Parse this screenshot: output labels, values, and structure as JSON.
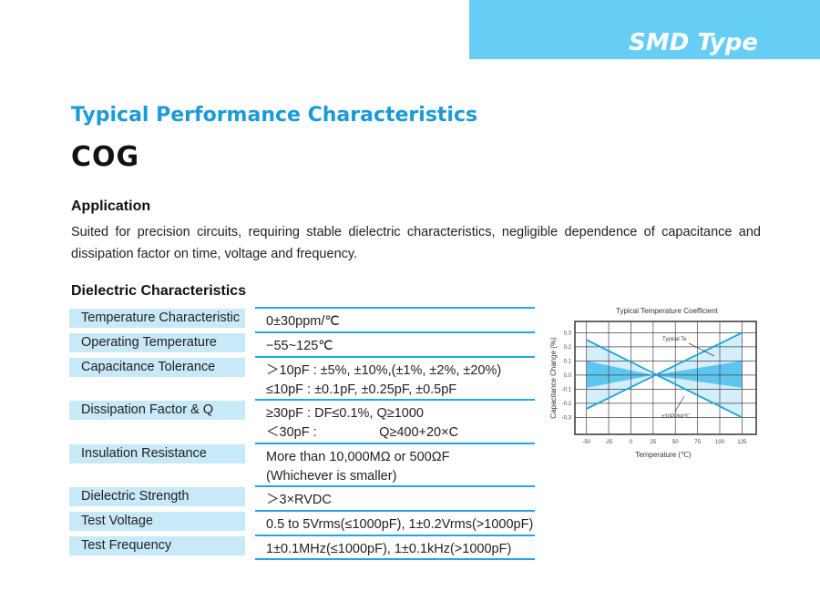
{
  "header": {
    "badge": "SMD Type"
  },
  "title": "Typical Performance Characteristics",
  "subtitle": "COG",
  "application": {
    "heading": "Application",
    "text": "Suited for precision circuits, requiring stable dielectric characteristics, negligible dependence of capacitance and dissipation factor on time, voltage and frequency."
  },
  "dielectric": {
    "heading": "Dielectric Characteristics",
    "rows": [
      {
        "label": "Temperature Characteristic",
        "lines": [
          "0±30ppm/℃"
        ]
      },
      {
        "label": "Operating Temperature",
        "lines": [
          "−55~125℃"
        ]
      },
      {
        "label": "Capacitance Tolerance",
        "lines": [
          "＞10pF : ±5%, ±10%,(±1%, ±2%, ±20%)",
          "≤10pF : ±0.1pF, ±0.25pF, ±0.5pF"
        ]
      },
      {
        "label": "Dissipation Factor & Q",
        "lines": [
          "≥30pF : DF≤0.1%, Q≥1000",
          "＜30pF :                 Q≥400+20×C"
        ]
      },
      {
        "label": "Insulation Resistance",
        "lines": [
          "More than 10,000MΩ or 500ΩF",
          "(Whichever is smaller)"
        ]
      },
      {
        "label": "Dielectric Strength",
        "lines": [
          "＞3×RVDC"
        ]
      },
      {
        "label": "Test Voltage",
        "lines": [
          "0.5 to 5Vrms(≤1000pF), 1±0.2Vrms(>1000pF)"
        ]
      },
      {
        "label": "Test Frequency",
        "lines": [
          "1±0.1MHz(≤1000pF), 1±0.1kHz(>1000pF)"
        ]
      }
    ]
  },
  "chart_data": {
    "type": "line",
    "title": "Typical Temperature Coefficient",
    "xlabel": "Temperature (℃)",
    "ylabel": "Capacitance Change (%)",
    "xticks": [
      -50,
      -25,
      0,
      25,
      50,
      75,
      100,
      125
    ],
    "yticks": [
      0.3,
      0.2,
      0.1,
      0.0,
      -0.1,
      -0.2,
      -0.3
    ],
    "ytick_labels": [
      "0.3",
      "0.2",
      "0.1",
      "0.0",
      "-0.1",
      "-0.2",
      "-0.3"
    ],
    "xlim": [
      -63,
      141
    ],
    "ylim": [
      -0.42,
      0.38
    ],
    "grid": true,
    "series": [
      {
        "name": "+30PPM/℃ limit",
        "x": [
          -50,
          125
        ],
        "y": [
          -0.24,
          0.3
        ]
      },
      {
        "name": "-30PPM/℃ limit",
        "x": [
          -50,
          125
        ],
        "y": [
          0.25,
          -0.3
        ]
      }
    ],
    "band_typical": {
      "x": [
        -50,
        25,
        125
      ],
      "upper": [
        0.1,
        0,
        0.1
      ],
      "lower": [
        -0.09,
        0,
        -0.09
      ]
    },
    "annotations": [
      "Typical Te",
      "±30PPM/℃"
    ],
    "colors": {
      "line": "#1aa3e0",
      "band_light": "#d4eefb",
      "band_dark": "#5cc6f0"
    }
  }
}
